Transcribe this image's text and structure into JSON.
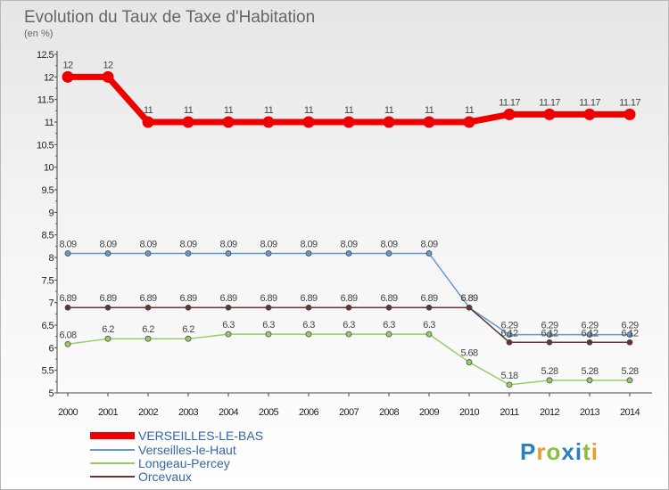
{
  "chart_data": {
    "type": "line",
    "title": "Evolution du Taux de Taxe d'Habitation",
    "subtitle": "(en %)",
    "xlabel": "",
    "ylabel": "",
    "categories": [
      "2000",
      "2001",
      "2002",
      "2003",
      "2004",
      "2005",
      "2006",
      "2007",
      "2008",
      "2009",
      "2010",
      "2011",
      "2012",
      "2013",
      "2014"
    ],
    "yticks": [
      "5",
      "5.5",
      "6",
      "6.5",
      "7",
      "7.5",
      "8",
      "8.5",
      "9",
      "9.5",
      "10",
      "10.5",
      "11",
      "11.5",
      "12",
      "12.5"
    ],
    "ylim": [
      5,
      12.5
    ],
    "grid": false,
    "legend_position": "bottom-left",
    "series": [
      {
        "name": "VERSEILLES-LE-BAS",
        "color": "#ee0000",
        "values": [
          12,
          12,
          11,
          11,
          11,
          11,
          11,
          11,
          11,
          11,
          11,
          11.17,
          11.17,
          11.17,
          11.17
        ],
        "labels": [
          "12",
          "12",
          "11",
          "11",
          "11",
          "11",
          "11",
          "11",
          "11",
          "11",
          "11",
          "11.17",
          "11.17",
          "11.17",
          "11.17"
        ]
      },
      {
        "name": "Verseilles-le-Haut",
        "color": "#6699cc",
        "values": [
          8.09,
          8.09,
          8.09,
          8.09,
          8.09,
          8.09,
          8.09,
          8.09,
          8.09,
          8.09,
          6.89,
          6.29,
          6.29,
          6.29,
          6.29
        ],
        "labels": [
          "8.09",
          "8.09",
          "8.09",
          "8.09",
          "8.09",
          "8.09",
          "8.09",
          "8.09",
          "8.09",
          "8.09",
          "6.89",
          "6.29",
          "6.29",
          "6.29",
          "6.29"
        ]
      },
      {
        "name": "Longeau-Percey",
        "color": "#99cc66",
        "values": [
          6.08,
          6.2,
          6.2,
          6.2,
          6.3,
          6.3,
          6.3,
          6.3,
          6.3,
          6.3,
          5.68,
          5.18,
          5.28,
          5.28,
          5.28
        ],
        "labels": [
          "6.08",
          "6.2",
          "6.2",
          "6.2",
          "6.3",
          "6.3",
          "6.3",
          "6.3",
          "6.3",
          "6.3",
          "5.68",
          "5.18",
          "5.28",
          "5.28",
          "5.28"
        ]
      },
      {
        "name": "Orcevaux",
        "color": "#663333",
        "values": [
          6.89,
          6.89,
          6.89,
          6.89,
          6.89,
          6.89,
          6.89,
          6.89,
          6.89,
          6.89,
          6.89,
          6.12,
          6.12,
          6.12,
          6.12
        ],
        "labels": [
          "6.89",
          "6.89",
          "6.89",
          "6.89",
          "6.89",
          "6.89",
          "6.89",
          "6.89",
          "6.89",
          "6.89",
          "6.89",
          "6.12",
          "6.12",
          "6.12",
          "6.12"
        ]
      }
    ]
  },
  "logo": {
    "text": "Proxiti"
  }
}
